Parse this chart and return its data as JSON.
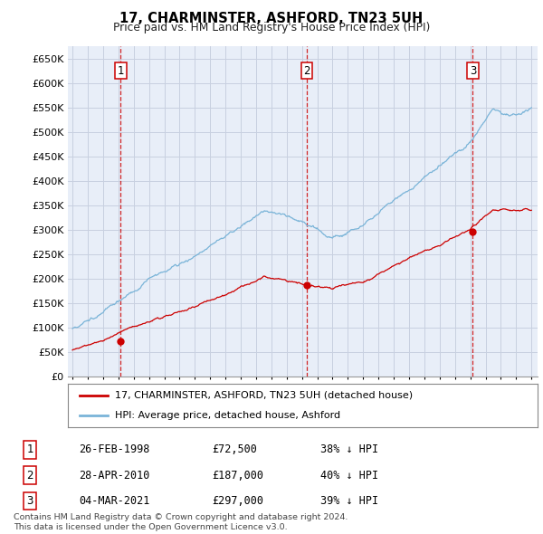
{
  "title": "17, CHARMINSTER, ASHFORD, TN23 5UH",
  "subtitle": "Price paid vs. HM Land Registry's House Price Index (HPI)",
  "hpi_color": "#7ab4d8",
  "price_color": "#cc0000",
  "vline_color": "#cc0000",
  "grid_color": "#c8d0e0",
  "bg_color": "#e8eef8",
  "transactions": [
    {
      "num": 1,
      "date_label": "26-FEB-1998",
      "date_year": 1998.14,
      "price": 72500,
      "pct": "38%"
    },
    {
      "num": 2,
      "date_label": "28-APR-2010",
      "date_year": 2010.32,
      "price": 187000,
      "pct": "40%"
    },
    {
      "num": 3,
      "date_label": "04-MAR-2021",
      "date_year": 2021.17,
      "price": 297000,
      "pct": "39%"
    }
  ],
  "legend_line1": "17, CHARMINSTER, ASHFORD, TN23 5UH (detached house)",
  "legend_line2": "HPI: Average price, detached house, Ashford",
  "footnote1": "Contains HM Land Registry data © Crown copyright and database right 2024.",
  "footnote2": "This data is licensed under the Open Government Licence v3.0.",
  "ytick_vals": [
    0,
    50000,
    100000,
    150000,
    200000,
    250000,
    300000,
    350000,
    400000,
    450000,
    500000,
    550000,
    600000,
    650000
  ],
  "ytick_labels": [
    "£0",
    "£50K",
    "£100K",
    "£150K",
    "£200K",
    "£250K",
    "£300K",
    "£350K",
    "£400K",
    "£450K",
    "£500K",
    "£550K",
    "£600K",
    "£650K"
  ],
  "ylim": [
    0,
    675000
  ],
  "xlim_min": 1994.7,
  "xlim_max": 2025.4
}
